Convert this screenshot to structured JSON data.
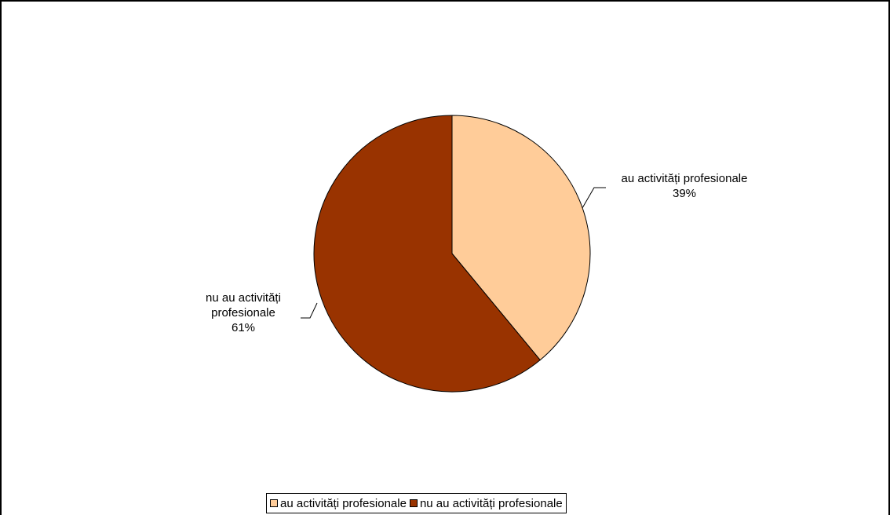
{
  "chart_data": {
    "type": "pie",
    "title": "",
    "slices": [
      {
        "label": "au activități profesionale",
        "value": 39,
        "label_line1": "au activități profesionale",
        "label_line2": "",
        "percent_text": "39%",
        "color": "#FFCC99"
      },
      {
        "label": "nu au activități profesionale",
        "value": 61,
        "label_line1": "nu au activități",
        "label_line2": "profesionale",
        "percent_text": "61%",
        "color": "#993300"
      }
    ],
    "legend": {
      "placement": "bottom",
      "items": [
        {
          "label": "au activități profesionale",
          "color": "#FFCC99"
        },
        {
          "label": "nu au activități profesionale",
          "color": "#993300"
        }
      ]
    }
  }
}
